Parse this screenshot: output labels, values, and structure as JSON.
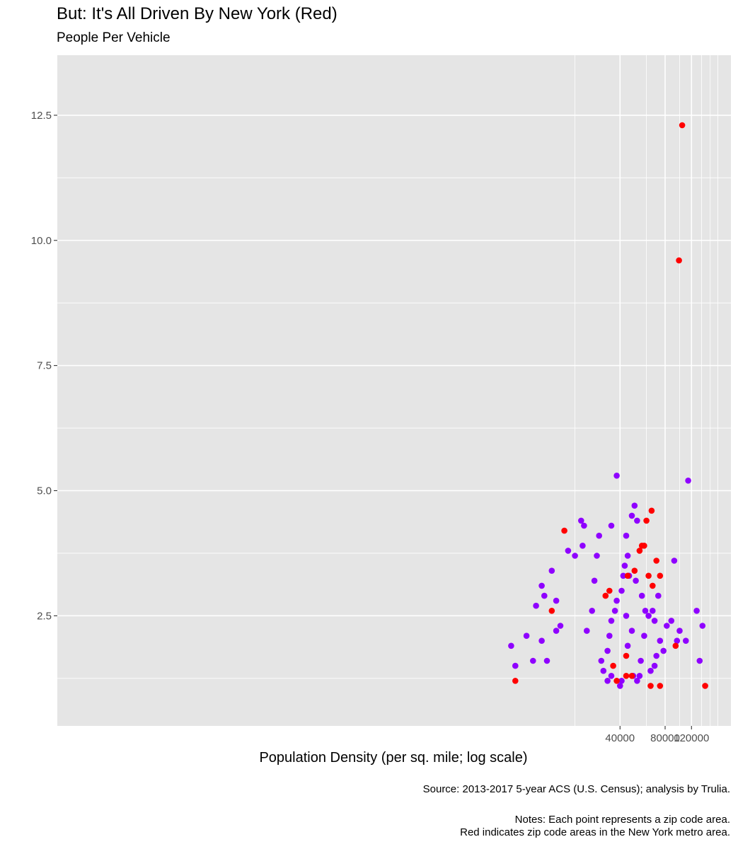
{
  "title": "But: It's All Driven By New York (Red)",
  "subtitle": "People Per Vehicle",
  "source": "Source: 2013-2017 5-year ACS (U.S. Census); analysis by Trulia.",
  "notes_line1": "Notes: Each point represents a zip code area.",
  "notes_line2": "Red indicates zip code areas in the New York metro area.",
  "chart_data": {
    "type": "scatter",
    "title": "But: It's All Driven By New York (Red)",
    "subtitle": "People Per Vehicle",
    "xlabel": "Population Density (per sq. mile; log scale)",
    "ylabel": "",
    "x_scale": "log",
    "xlim": [
      7,
      220000
    ],
    "ylim": [
      0.3,
      13.7
    ],
    "x_ticks": [
      40000,
      80000,
      120000
    ],
    "x_tick_labels": [
      "40000",
      "80000",
      "120000"
    ],
    "x_minor_gridlines": [
      20000,
      60000,
      100000,
      140000,
      160000,
      180000
    ],
    "y_ticks": [
      2.5,
      5.0,
      7.5,
      10.0,
      12.5
    ],
    "y_tick_labels": [
      "2.5",
      "5.0",
      "7.5",
      "10.0",
      "12.5"
    ],
    "grid": true,
    "legend": "none",
    "colors": {
      "ny": "#ff0000",
      "other": "#8f00ff",
      "panel": "#e5e5e5",
      "grid": "#ffffff"
    },
    "series": [
      {
        "name": "",
        "color": "#ff0000",
        "points": [
          [
            44000,
            1.3
          ],
          [
            48000,
            1.3
          ],
          [
            44000,
            1.7
          ],
          [
            38000,
            1.2
          ],
          [
            74000,
            1.1
          ],
          [
            64000,
            1.1
          ],
          [
            148000,
            1.1
          ],
          [
            94000,
            1.9
          ],
          [
            8000,
            1.2
          ],
          [
            36000,
            1.5
          ],
          [
            99000,
            9.6
          ],
          [
            104000,
            12.3
          ],
          [
            14000,
            2.6
          ],
          [
            17000,
            4.2
          ],
          [
            56000,
            3.9
          ],
          [
            54000,
            3.8
          ],
          [
            58000,
            3.9
          ],
          [
            60000,
            4.4
          ],
          [
            65000,
            4.6
          ],
          [
            50000,
            3.4
          ],
          [
            34000,
            3.0
          ],
          [
            32000,
            2.9
          ],
          [
            70000,
            3.6
          ],
          [
            66000,
            3.1
          ],
          [
            62000,
            3.3
          ],
          [
            45000,
            3.3
          ],
          [
            74000,
            3.3
          ]
        ]
      },
      {
        "name": "",
        "color": "#8f00ff",
        "points": [
          [
            12000,
            3.1
          ],
          [
            9500,
            2.1
          ],
          [
            10500,
            1.6
          ],
          [
            16000,
            2.3
          ],
          [
            14000,
            3.4
          ],
          [
            18000,
            3.8
          ],
          [
            22000,
            4.4
          ],
          [
            20000,
            3.7
          ],
          [
            23000,
            4.3
          ],
          [
            22500,
            3.9
          ],
          [
            12500,
            2.9
          ],
          [
            15000,
            2.8
          ],
          [
            12000,
            2.0
          ],
          [
            7500,
            1.9
          ],
          [
            8000,
            1.5
          ],
          [
            13000,
            1.6
          ],
          [
            15000,
            2.2
          ],
          [
            11000,
            2.7
          ],
          [
            24000,
            2.2
          ],
          [
            26000,
            2.6
          ],
          [
            27000,
            3.2
          ],
          [
            28000,
            3.7
          ],
          [
            29000,
            4.1
          ],
          [
            35000,
            4.3
          ],
          [
            38000,
            5.3
          ],
          [
            44000,
            4.1
          ],
          [
            52000,
            4.4
          ],
          [
            44000,
            2.5
          ],
          [
            46000,
            3.3
          ],
          [
            48000,
            4.5
          ],
          [
            50000,
            4.7
          ],
          [
            48000,
            2.2
          ],
          [
            45000,
            1.9
          ],
          [
            55000,
            1.6
          ],
          [
            58000,
            2.1
          ],
          [
            66000,
            2.6
          ],
          [
            68000,
            2.4
          ],
          [
            74000,
            2.0
          ],
          [
            82000,
            2.3
          ],
          [
            78000,
            1.8
          ],
          [
            70000,
            1.7
          ],
          [
            68000,
            1.5
          ],
          [
            64000,
            1.4
          ],
          [
            54000,
            1.3
          ],
          [
            52000,
            1.2
          ],
          [
            49000,
            1.3
          ],
          [
            41000,
            1.2
          ],
          [
            40000,
            1.1
          ],
          [
            35000,
            1.3
          ],
          [
            33000,
            1.2
          ],
          [
            31000,
            1.4
          ],
          [
            30000,
            1.6
          ],
          [
            33000,
            1.8
          ],
          [
            34000,
            2.1
          ],
          [
            35000,
            2.4
          ],
          [
            37000,
            2.6
          ],
          [
            38000,
            2.8
          ],
          [
            41000,
            3.0
          ],
          [
            42000,
            3.3
          ],
          [
            43000,
            3.5
          ],
          [
            45000,
            3.7
          ],
          [
            51000,
            3.2
          ],
          [
            56000,
            2.9
          ],
          [
            59000,
            2.6
          ],
          [
            62000,
            2.5
          ],
          [
            72000,
            2.9
          ],
          [
            92000,
            3.6
          ],
          [
            114000,
            5.2
          ],
          [
            130000,
            2.6
          ],
          [
            142000,
            2.3
          ],
          [
            136000,
            1.6
          ],
          [
            96000,
            2.0
          ],
          [
            88000,
            2.4
          ],
          [
            100000,
            2.2
          ],
          [
            110000,
            2.0
          ]
        ]
      }
    ]
  }
}
